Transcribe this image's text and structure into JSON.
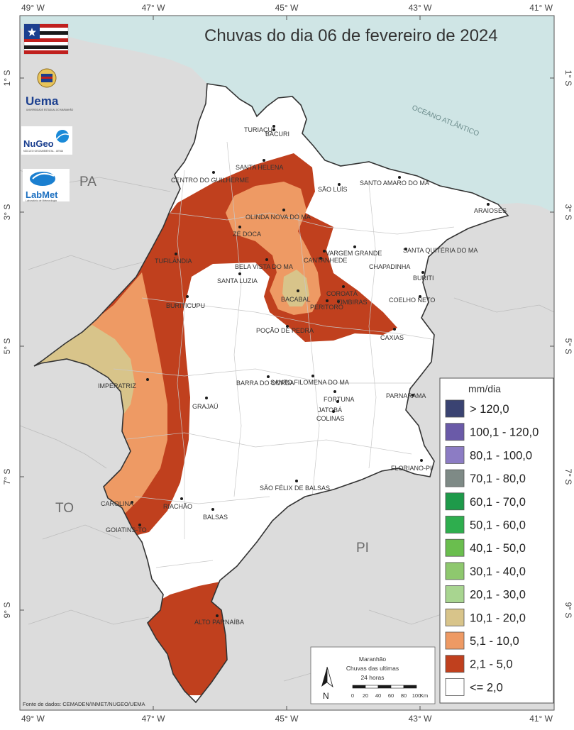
{
  "title": "Chuvas do dia 06 de fevereiro de 2024",
  "ocean_label": "OCEANO ATLÂNTICO",
  "state_labels": {
    "pa": "PA",
    "to": "TO",
    "pi": "PI"
  },
  "lon_ticks": [
    "49° W",
    "47° W",
    "45° W",
    "43° W",
    "41° W"
  ],
  "lat_ticks": [
    "1° S",
    "3° S",
    "5° S",
    "7° S",
    "9° S"
  ],
  "cities": [
    "TURIAÇU",
    "BACURI",
    "SANTA HELENA",
    "CENTRO DO GUILHERME",
    "SÃO LUÍS",
    "SANTO AMARO DO MA",
    "ARAIOSES",
    "OLINDA NOVA DO MA",
    "ZÉ DOCA",
    "VARGEM GRANDE",
    "SANTA QUITÉRIA DO MA",
    "TUFILÂNDIA",
    "BELA VISTA DO MA",
    "CANTANHEDE",
    "CHAPADINHA",
    "SANTA LUZIA",
    "BURITI",
    "COROATÁ",
    "COELHO NETO",
    "BURITICUPU",
    "BACABAL",
    "TIMBIRAS",
    "PERITORÓ",
    "POÇÃO DE PEDRA",
    "CAXIAS",
    "BARRA DO CORDA",
    "SANTO FILOMENA DO MA",
    "IMPERATRIZ",
    "FORTUNA",
    "PARNARAMA",
    "GRAJAÚ",
    "JATOBÁ",
    "COLINAS",
    "FLORIANO-PI",
    "SÃO FÉLIX DE BALSAS",
    "CAROLINA",
    "RIACHÃO",
    "BALSAS",
    "GOIATINS-TO",
    "ALTO PARNAÍBA"
  ],
  "logos": {
    "uema": "Uema",
    "uema_sub": "UNIVERSIDADE ESTADUAL DO MARANHÃO",
    "nugeo": "NuGeo",
    "nugeo_sub": "NÚCLEO GEOAMBIENTAL - UEMA",
    "labmet": "LabMet",
    "labmet_sub": "Laboratório de Meteorologia"
  },
  "legend": {
    "title": "mm/dia",
    "items": [
      {
        "label": "> 120,0",
        "color": "#3a4372"
      },
      {
        "label": "100,1 - 120,0",
        "color": "#6a5aa8"
      },
      {
        "label": "80,1 - 100,0",
        "color": "#8c7cc4"
      },
      {
        "label": "70,1 - 80,0",
        "color": "#7e8a86"
      },
      {
        "label": "60,1 - 70,0",
        "color": "#1e9a4a"
      },
      {
        "label": "50,1 - 60,0",
        "color": "#2eae4e"
      },
      {
        "label": "40,1 - 50,0",
        "color": "#6abe4e"
      },
      {
        "label": "30,1 - 40,0",
        "color": "#8ec86e"
      },
      {
        "label": "20,1 - 30,0",
        "color": "#a8d590"
      },
      {
        "label": "10,1 - 20,0",
        "color": "#d8c48a"
      },
      {
        "label": "5,1 - 10,0",
        "color": "#ee9a64"
      },
      {
        "label": "2,1 - 5,0",
        "color": "#c0401e"
      },
      {
        "label": "<= 2,0",
        "color": "#ffffff"
      }
    ]
  },
  "scale_box": {
    "line1": "Maranhão",
    "line2": "Chuvas das ultimas",
    "line3": "24 horas",
    "north": "N",
    "ticks": [
      "0",
      "20",
      "40",
      "60",
      "80",
      "100"
    ],
    "unit": "Km"
  },
  "source": "Fonte de dados: CEMADEN/INMET/NUGEO/UEMA",
  "colors": {
    "ocean": "#cfe5e5",
    "land": "#dcdcdc",
    "state": "#ffffff",
    "class_2_5": "#c0401e",
    "class_5_10": "#ee9a64",
    "class_10_20": "#d8c48a"
  }
}
